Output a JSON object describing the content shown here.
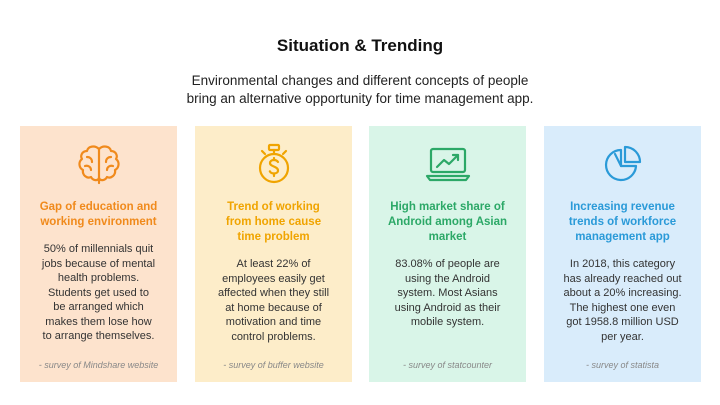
{
  "title": "Situation & Trending",
  "subtitle": {
    "line1": "Environmental changes and different concepts of people",
    "line2": "bring an alternative opportunity for time management app."
  },
  "colors": {
    "card1_bg": "#fde3cd",
    "card1_accent": "#f08a1c",
    "card2_bg": "#fdedc9",
    "card2_accent": "#f0a400",
    "card3_bg": "#d9f5e8",
    "card3_accent": "#2ca867",
    "card4_bg": "#d9ecfb",
    "card4_accent": "#2a9ad8"
  },
  "cards": [
    {
      "icon": "brain-icon",
      "heading": [
        "Gap of education and",
        "working environment"
      ],
      "body": [
        "50% of millennials quit",
        "jobs because of mental",
        "health problems.",
        "Students get used to",
        "be arranged which",
        "makes them lose how",
        "to arrange themselves."
      ],
      "source": "- survey of Mindshare website"
    },
    {
      "icon": "money-clock-icon",
      "heading": [
        "Trend of working",
        "from home cause",
        "time problem"
      ],
      "body": [
        "At least 22% of",
        "employees easily get",
        "affected when they still",
        "at home because of",
        "motivation and time",
        "control problems."
      ],
      "source": "- survey of buffer website"
    },
    {
      "icon": "laptop-chart-icon",
      "heading": [
        "High market share of",
        "Android among Asian",
        "market"
      ],
      "body": [
        "83.08% of people are",
        "using the Android",
        "system. Most Asians",
        "using Android as their",
        "mobile system."
      ],
      "source": "- survey of statcounter"
    },
    {
      "icon": "pie-chart-icon",
      "heading": [
        "Increasing revenue",
        "trends of workforce",
        "management app"
      ],
      "body": [
        "In 2018, this category",
        "has already reached out",
        "about a 20% increasing.",
        "The highest one even",
        "got 1958.8 million USD",
        "per year."
      ],
      "source": "- survey of statista"
    }
  ]
}
